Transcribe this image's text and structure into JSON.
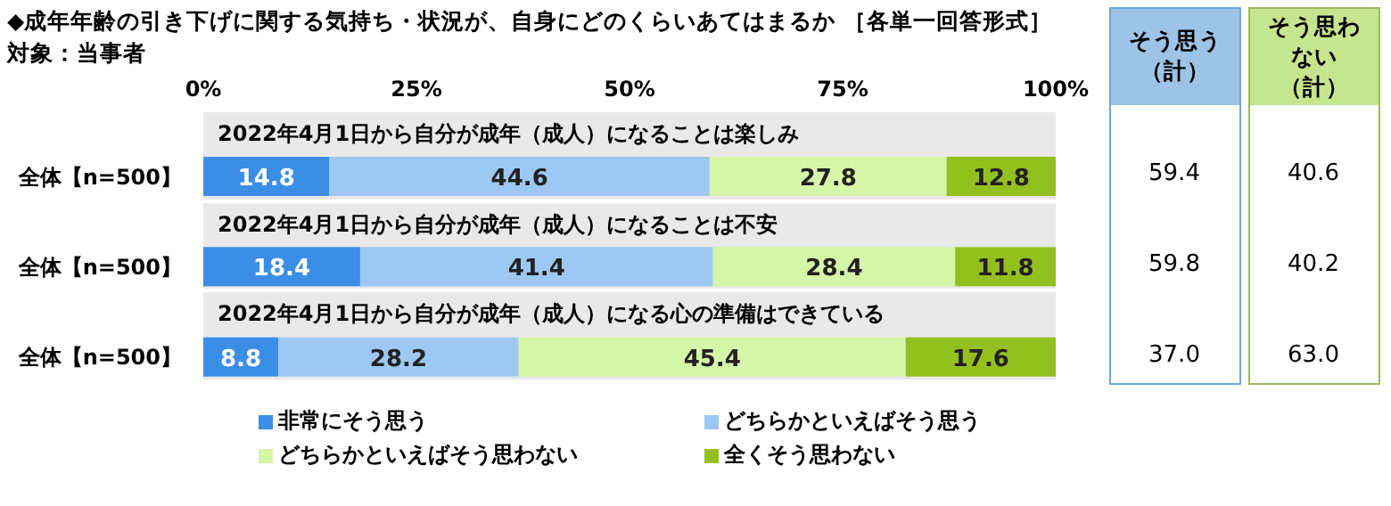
{
  "chart_data": {
    "type": "bar",
    "orientation": "horizontal",
    "stacked": true,
    "title": "◆成年年齢の引き下げに関する気持ち・状況が、自身にどのくらいあてはまるか ［各単一回答形式］",
    "subtitle": "対象：当事者",
    "categories": [
      "全体【n=500】",
      "全体【n=500】",
      "全体【n=500】"
    ],
    "series": [
      {
        "name": "非常にそう思う",
        "color": "#3a8ee6",
        "values": [
          14.8,
          18.4,
          8.8
        ]
      },
      {
        "name": "どちらかといえばそう思う",
        "color": "#9dc8f3",
        "values": [
          44.6,
          41.4,
          28.2
        ]
      },
      {
        "name": "どちらかといえばそう思わない",
        "color": "#d5f5a8",
        "values": [
          27.8,
          28.4,
          45.4
        ]
      },
      {
        "name": "全くそう思わない",
        "color": "#93c01f",
        "values": [
          12.8,
          11.8,
          17.6
        ]
      }
    ],
    "xlim": [
      0,
      100
    ],
    "xticks": [
      {
        "value": 0,
        "label": "0%"
      },
      {
        "value": 25,
        "label": "25%"
      },
      {
        "value": 50,
        "label": "50%"
      },
      {
        "value": 75,
        "label": "75%"
      },
      {
        "value": 100,
        "label": "100%"
      }
    ],
    "data_labels": true,
    "legend": "bottom",
    "annotations": [
      "2022年4月1日から自分が成年（成人）になることは楽しみ",
      "2022年4月1日から自分が成年（成人）になることは不安",
      "2022年4月1日から自分が成年（成人）になる心の準備はできている",
      "そう思う（計）",
      "そう思わない（計）",
      "59.4",
      "59.8",
      "37.0",
      "40.6",
      "40.2",
      "63.0"
    ]
  }
}
